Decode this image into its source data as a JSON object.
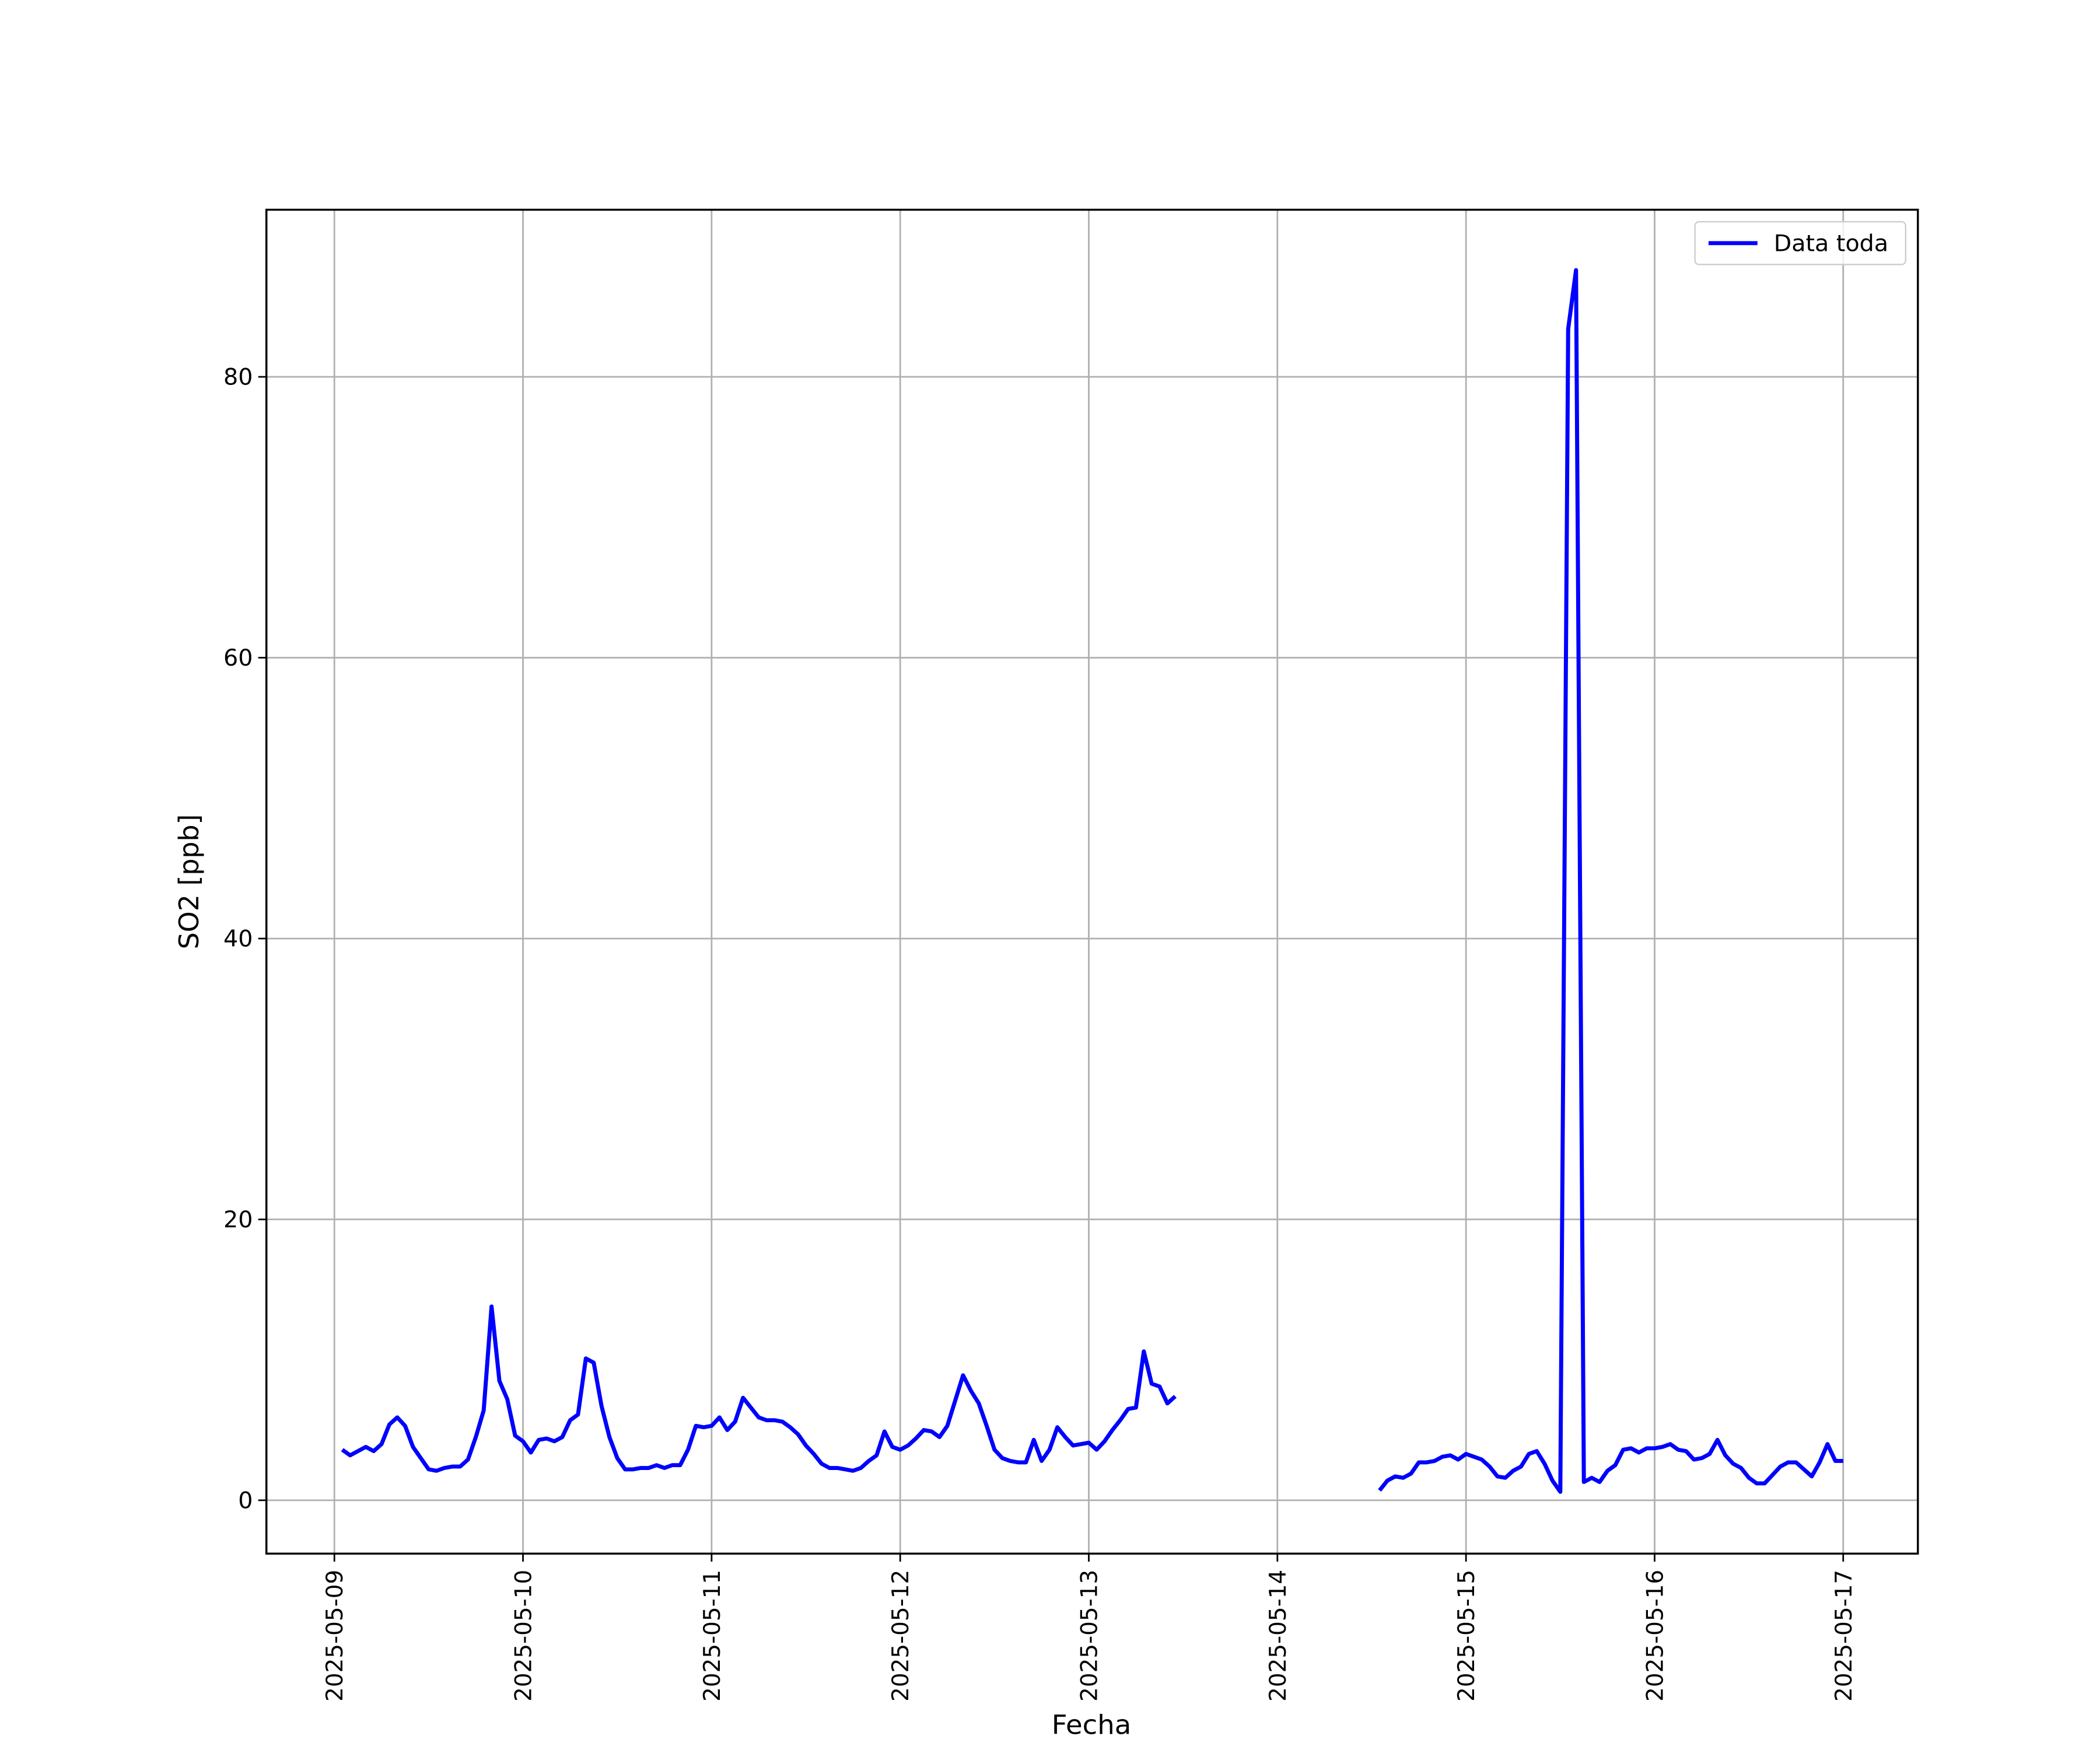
{
  "chart_data": {
    "type": "line",
    "xlabel": "Fecha",
    "ylabel": "SO2 [ppb]",
    "x": [
      "2025-05-09 01:00",
      "2025-05-09 02:00",
      "2025-05-09 03:00",
      "2025-05-09 04:00",
      "2025-05-09 05:00",
      "2025-05-09 06:00",
      "2025-05-09 07:00",
      "2025-05-09 08:00",
      "2025-05-09 09:00",
      "2025-05-09 10:00",
      "2025-05-09 11:00",
      "2025-05-09 12:00",
      "2025-05-09 13:00",
      "2025-05-09 14:00",
      "2025-05-09 15:00",
      "2025-05-09 16:00",
      "2025-05-09 17:00",
      "2025-05-09 18:00",
      "2025-05-09 19:00",
      "2025-05-09 20:00",
      "2025-05-09 21:00",
      "2025-05-09 22:00",
      "2025-05-09 23:00",
      "2025-05-10 00:00",
      "2025-05-10 01:00",
      "2025-05-10 02:00",
      "2025-05-10 03:00",
      "2025-05-10 04:00",
      "2025-05-10 05:00",
      "2025-05-10 06:00",
      "2025-05-10 07:00",
      "2025-05-10 08:00",
      "2025-05-10 09:00",
      "2025-05-10 10:00",
      "2025-05-10 11:00",
      "2025-05-10 12:00",
      "2025-05-10 13:00",
      "2025-05-10 14:00",
      "2025-05-10 15:00",
      "2025-05-10 16:00",
      "2025-05-10 17:00",
      "2025-05-10 18:00",
      "2025-05-10 19:00",
      "2025-05-10 20:00",
      "2025-05-10 21:00",
      "2025-05-10 22:00",
      "2025-05-10 23:00",
      "2025-05-11 00:00",
      "2025-05-11 01:00",
      "2025-05-11 02:00",
      "2025-05-11 03:00",
      "2025-05-11 04:00",
      "2025-05-11 05:00",
      "2025-05-11 06:00",
      "2025-05-11 07:00",
      "2025-05-11 08:00",
      "2025-05-11 09:00",
      "2025-05-11 10:00",
      "2025-05-11 11:00",
      "2025-05-11 12:00",
      "2025-05-11 13:00",
      "2025-05-11 14:00",
      "2025-05-11 15:00",
      "2025-05-11 16:00",
      "2025-05-11 17:00",
      "2025-05-11 18:00",
      "2025-05-11 19:00",
      "2025-05-11 20:00",
      "2025-05-11 21:00",
      "2025-05-11 22:00",
      "2025-05-11 23:00",
      "2025-05-12 00:00",
      "2025-05-12 01:00",
      "2025-05-12 02:00",
      "2025-05-12 03:00",
      "2025-05-12 04:00",
      "2025-05-12 05:00",
      "2025-05-12 06:00",
      "2025-05-12 07:00",
      "2025-05-12 08:00",
      "2025-05-12 09:00",
      "2025-05-12 10:00",
      "2025-05-12 11:00",
      "2025-05-12 12:00",
      "2025-05-12 13:00",
      "2025-05-12 14:00",
      "2025-05-12 15:00",
      "2025-05-12 16:00",
      "2025-05-12 17:00",
      "2025-05-12 18:00",
      "2025-05-12 19:00",
      "2025-05-12 20:00",
      "2025-05-12 21:00",
      "2025-05-12 22:00",
      "2025-05-12 23:00",
      "2025-05-13 00:00",
      "2025-05-13 01:00",
      "2025-05-13 02:00",
      "2025-05-13 03:00",
      "2025-05-13 04:00",
      "2025-05-13 05:00",
      "2025-05-13 06:00",
      "2025-05-13 07:00",
      "2025-05-13 08:00",
      "2025-05-13 09:00",
      "2025-05-13 10:00",
      "2025-05-13 11:00",
      "2025-05-14 00:00",
      "2025-05-14 13:00",
      "2025-05-14 14:00",
      "2025-05-14 15:00",
      "2025-05-14 16:00",
      "2025-05-14 17:00",
      "2025-05-14 18:00",
      "2025-05-14 19:00",
      "2025-05-14 20:00",
      "2025-05-14 21:00",
      "2025-05-14 22:00",
      "2025-05-14 23:00",
      "2025-05-15 00:00",
      "2025-05-15 01:00",
      "2025-05-15 02:00",
      "2025-05-15 03:00",
      "2025-05-15 04:00",
      "2025-05-15 05:00",
      "2025-05-15 06:00",
      "2025-05-15 07:00",
      "2025-05-15 08:00",
      "2025-05-15 09:00",
      "2025-05-15 10:00",
      "2025-05-15 11:00",
      "2025-05-15 12:00",
      "2025-05-15 13:00",
      "2025-05-15 14:00",
      "2025-05-15 15:00",
      "2025-05-15 16:00",
      "2025-05-15 17:00",
      "2025-05-15 18:00",
      "2025-05-15 19:00",
      "2025-05-15 20:00",
      "2025-05-15 21:00",
      "2025-05-15 22:00",
      "2025-05-15 23:00",
      "2025-05-16 00:00",
      "2025-05-16 01:00",
      "2025-05-16 02:00",
      "2025-05-16 03:00",
      "2025-05-16 04:00",
      "2025-05-16 05:00",
      "2025-05-16 06:00",
      "2025-05-16 07:00",
      "2025-05-16 08:00",
      "2025-05-16 09:00",
      "2025-05-16 10:00",
      "2025-05-16 11:00",
      "2025-05-16 12:00",
      "2025-05-16 13:00",
      "2025-05-16 14:00",
      "2025-05-16 15:00",
      "2025-05-16 16:00",
      "2025-05-16 17:00",
      "2025-05-16 18:00",
      "2025-05-16 19:00",
      "2025-05-16 20:00",
      "2025-05-16 21:00",
      "2025-05-16 22:00",
      "2025-05-16 23:00",
      "2025-05-17 00:00"
    ],
    "series": [
      {
        "name": "Data toda",
        "color": "#0000ff",
        "values": [
          3.6,
          3.2,
          3.5,
          3.8,
          3.5,
          4.0,
          5.4,
          5.9,
          5.3,
          3.8,
          3.0,
          2.2,
          2.1,
          2.3,
          2.4,
          2.4,
          2.9,
          4.5,
          6.4,
          13.8,
          8.5,
          7.2,
          4.6,
          4.2,
          3.4,
          4.3,
          4.4,
          4.2,
          4.5,
          5.7,
          6.1,
          10.1,
          9.8,
          6.7,
          4.5,
          3.0,
          2.2,
          2.2,
          2.3,
          2.3,
          2.5,
          2.3,
          2.5,
          2.5,
          3.6,
          5.3,
          5.2,
          5.3,
          5.9,
          5.0,
          5.6,
          7.3,
          6.6,
          5.9,
          5.7,
          5.7,
          5.6,
          5.2,
          4.7,
          3.9,
          3.3,
          2.6,
          2.3,
          2.3,
          2.2,
          2.1,
          2.3,
          2.8,
          3.2,
          4.9,
          3.8,
          3.6,
          3.9,
          4.4,
          5.0,
          4.9,
          4.5,
          5.3,
          7.1,
          8.9,
          7.8,
          6.9,
          5.3,
          3.6,
          3.0,
          2.8,
          2.7,
          2.7,
          4.3,
          2.8,
          3.6,
          5.2,
          4.5,
          3.9,
          4.0,
          4.1,
          3.6,
          4.2,
          5.0,
          5.7,
          6.5,
          6.6,
          10.6,
          8.3,
          8.1,
          6.9,
          7.4,
          null,
          0.7,
          1.4,
          1.7,
          1.6,
          1.9,
          2.7,
          2.7,
          2.8,
          3.1,
          3.2,
          2.9,
          3.3,
          3.1,
          2.9,
          2.4,
          1.7,
          1.6,
          2.1,
          2.4,
          3.3,
          3.5,
          2.6,
          1.4,
          0.6,
          83.4,
          87.6,
          1.3,
          1.6,
          1.3,
          2.1,
          2.5,
          3.6,
          3.7,
          3.4,
          3.7,
          3.7,
          3.8,
          4.0,
          3.6,
          3.5,
          2.9,
          3.0,
          3.3,
          4.3,
          3.2,
          2.6,
          2.3,
          1.6,
          1.2,
          1.2,
          1.8,
          2.4,
          2.7,
          2.7,
          2.2,
          1.7,
          2.7,
          4.0,
          2.8,
          2.8
        ]
      }
    ],
    "xlim": [
      "2025-05-08 15:21",
      "2025-05-17 09:30"
    ],
    "xticks": [
      "2025-05-09",
      "2025-05-10",
      "2025-05-11",
      "2025-05-12",
      "2025-05-13",
      "2025-05-14",
      "2025-05-15",
      "2025-05-16",
      "2025-05-17"
    ],
    "ylim": [
      -3.8,
      91.9
    ],
    "yticks": [
      0,
      20,
      40,
      60,
      80
    ],
    "grid": true,
    "legend": "upper right"
  }
}
